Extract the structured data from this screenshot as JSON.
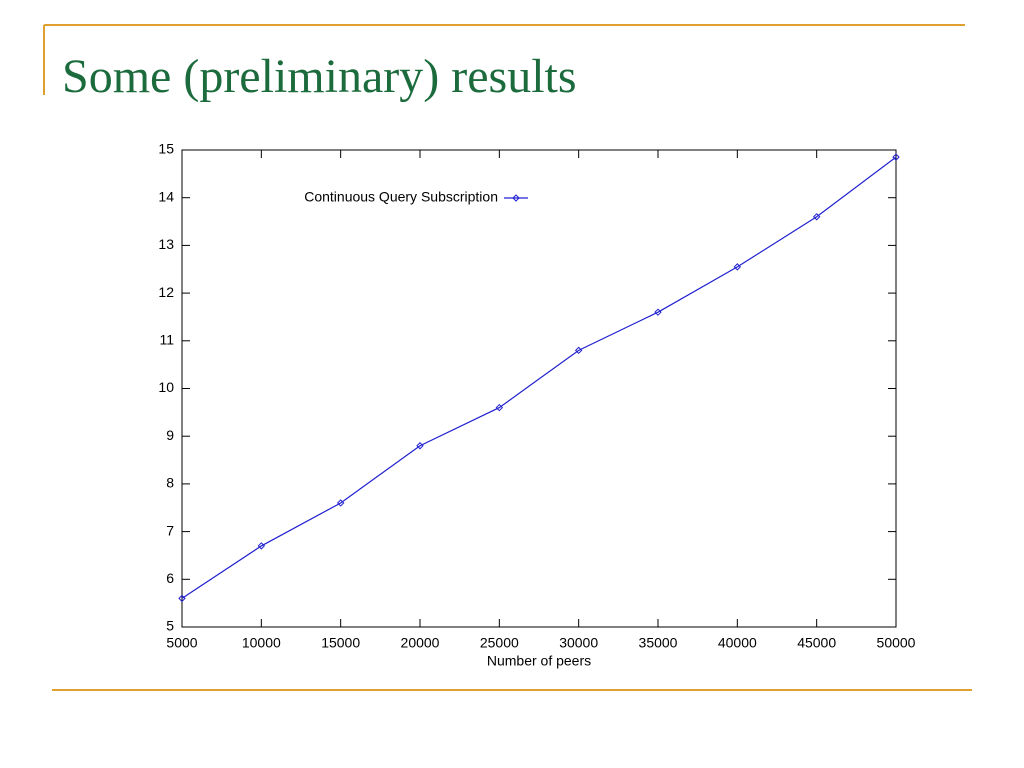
{
  "chart_data": {
    "type": "line",
    "title": "Some (preliminary) results",
    "xlabel": "Number of peers",
    "x": [
      5000,
      10000,
      15000,
      20000,
      25000,
      30000,
      35000,
      40000,
      45000,
      50000
    ],
    "series": [
      {
        "name": "Continuous Query Subscription",
        "color": "#2020d0",
        "values": [
          5.6,
          6.7,
          7.6,
          8.8,
          9.6,
          10.8,
          11.6,
          12.55,
          13.6,
          14.85
        ]
      }
    ],
    "xlim": [
      5000,
      50000
    ],
    "xticks": [
      5000,
      10000,
      15000,
      20000,
      25000,
      30000,
      35000,
      40000,
      45000,
      50000
    ],
    "ylim": [
      5,
      15
    ],
    "yticks": [
      5,
      6,
      7,
      8,
      9,
      10,
      11,
      12,
      13,
      14,
      15
    ],
    "legend": "upper center"
  }
}
